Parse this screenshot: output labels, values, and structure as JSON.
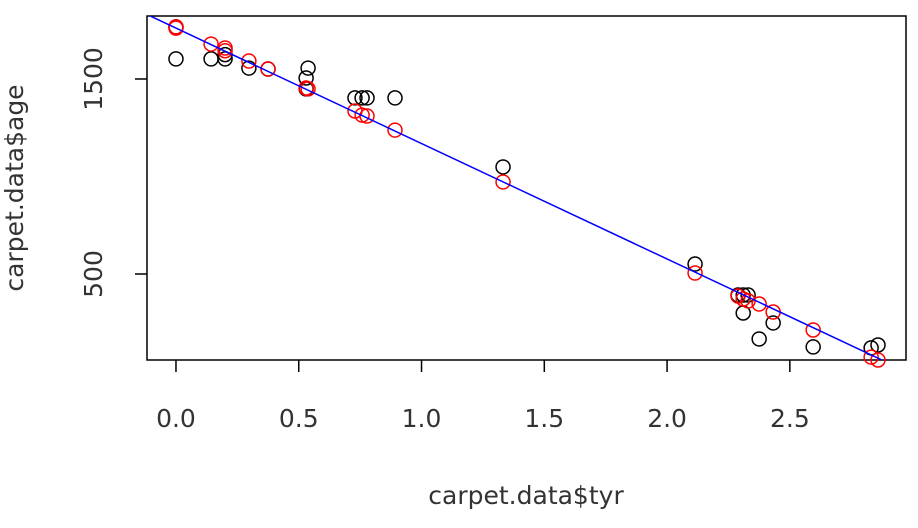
{
  "chart_data": {
    "type": "scatter",
    "x_label": "carpet.data$tyr",
    "y_label": "carpet.data$age",
    "xlim": [
      -0.118,
      2.973
    ],
    "ylim": [
      59,
      1823
    ],
    "xticks": [
      {
        "value": 0,
        "label": "0.0"
      },
      0.5,
      {
        "value": 1,
        "label": "1.0"
      },
      1.5,
      {
        "value": 2,
        "label": "2.0"
      },
      2.5
    ],
    "yticks": [
      500,
      1500
    ],
    "series": [
      {
        "color": "#000000",
        "x": [
          0,
          0,
          0.143,
          0.2,
          0.2,
          0.297,
          0.375,
          0.53,
          0.538,
          0.53,
          0.729,
          0.758,
          0.778,
          0.892,
          1.332,
          2.114,
          2.289,
          2.31,
          2.33,
          2.31,
          2.375,
          2.432,
          2.595,
          2.831,
          2.859
        ],
        "values": [
          1767,
          1603,
          1603,
          1603,
          1625,
          1556,
          1551,
          1505,
          1556,
          1449,
          1403,
          1403,
          1403,
          1403,
          1049,
          551,
          392,
          392,
          392,
          300,
          167,
          249,
          126,
          121,
          136
        ]
      },
      {
        "color": "#ff0000",
        "x": [
          0,
          0,
          0.143,
          0.2,
          0.2,
          0.297,
          0.375,
          0.53,
          0.538,
          0.729,
          0.758,
          0.778,
          0.892,
          1.332,
          2.114,
          2.289,
          2.31,
          2.33,
          2.375,
          2.432,
          2.595,
          2.831,
          2.859
        ],
        "values": [
          1767,
          1761,
          1679,
          1659,
          1645,
          1592,
          1551,
          1454,
          1449,
          1336,
          1315,
          1310,
          1238,
          972,
          505,
          387,
          372,
          362,
          346,
          305,
          213,
          74,
          59
        ]
      }
    ],
    "fit_line": {
      "color": "#0000ff",
      "intercept": 1761,
      "slope": -592
    }
  }
}
